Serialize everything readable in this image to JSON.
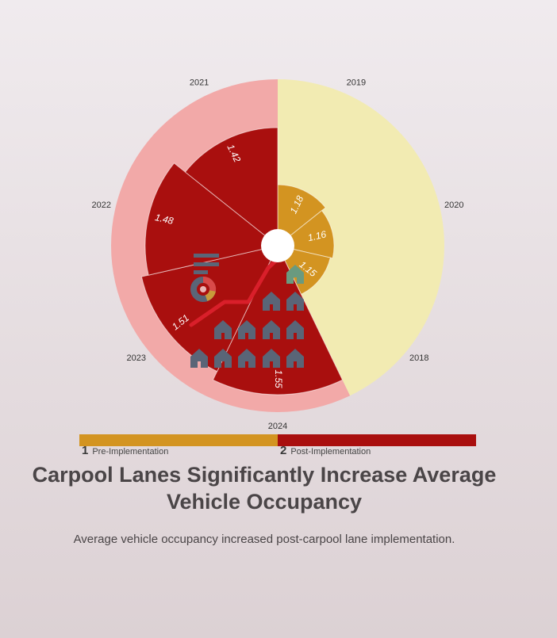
{
  "chart_data": {
    "type": "radial-bar",
    "title": "Carpool Lanes Significantly Increase Average Vehicle Occupancy",
    "subtitle": "Average vehicle occupancy increased post-carpool lane implementation.",
    "groups": [
      {
        "number": "1",
        "name": "Pre-Implementation",
        "color": "#d39421",
        "band_color": "#f2ebb2"
      },
      {
        "number": "2",
        "name": "Post-Implementation",
        "color": "#a90f0e",
        "band_color": "#f2a9a8"
      }
    ],
    "data": [
      {
        "year": "2018",
        "value": 1.15,
        "group": "Pre-Implementation"
      },
      {
        "year": "2019",
        "value": 1.18,
        "group": "Pre-Implementation"
      },
      {
        "year": "2020",
        "value": 1.16,
        "group": "Pre-Implementation"
      },
      {
        "year": "2021",
        "value": 1.42,
        "group": "Post-Implementation"
      },
      {
        "year": "2022",
        "value": 1.48,
        "group": "Post-Implementation"
      },
      {
        "year": "2023",
        "value": 1.51,
        "group": "Post-Implementation"
      },
      {
        "year": "2024",
        "value": 1.55,
        "group": "Post-Implementation"
      }
    ],
    "decorations": {
      "house_icon_color": "#5a6577",
      "trend_arrow_color": "#d91f2a"
    }
  },
  "legend": [
    {
      "number": "1",
      "label": "Pre-Implementation",
      "color": "#d39421"
    },
    {
      "number": "2",
      "label": "Post-Implementation",
      "color": "#a90f0e"
    }
  ],
  "title": "Carpool Lanes Significantly Increase Average Vehicle Occupancy",
  "subtitle": "Average vehicle occupancy increased post-carpool lane implementation."
}
